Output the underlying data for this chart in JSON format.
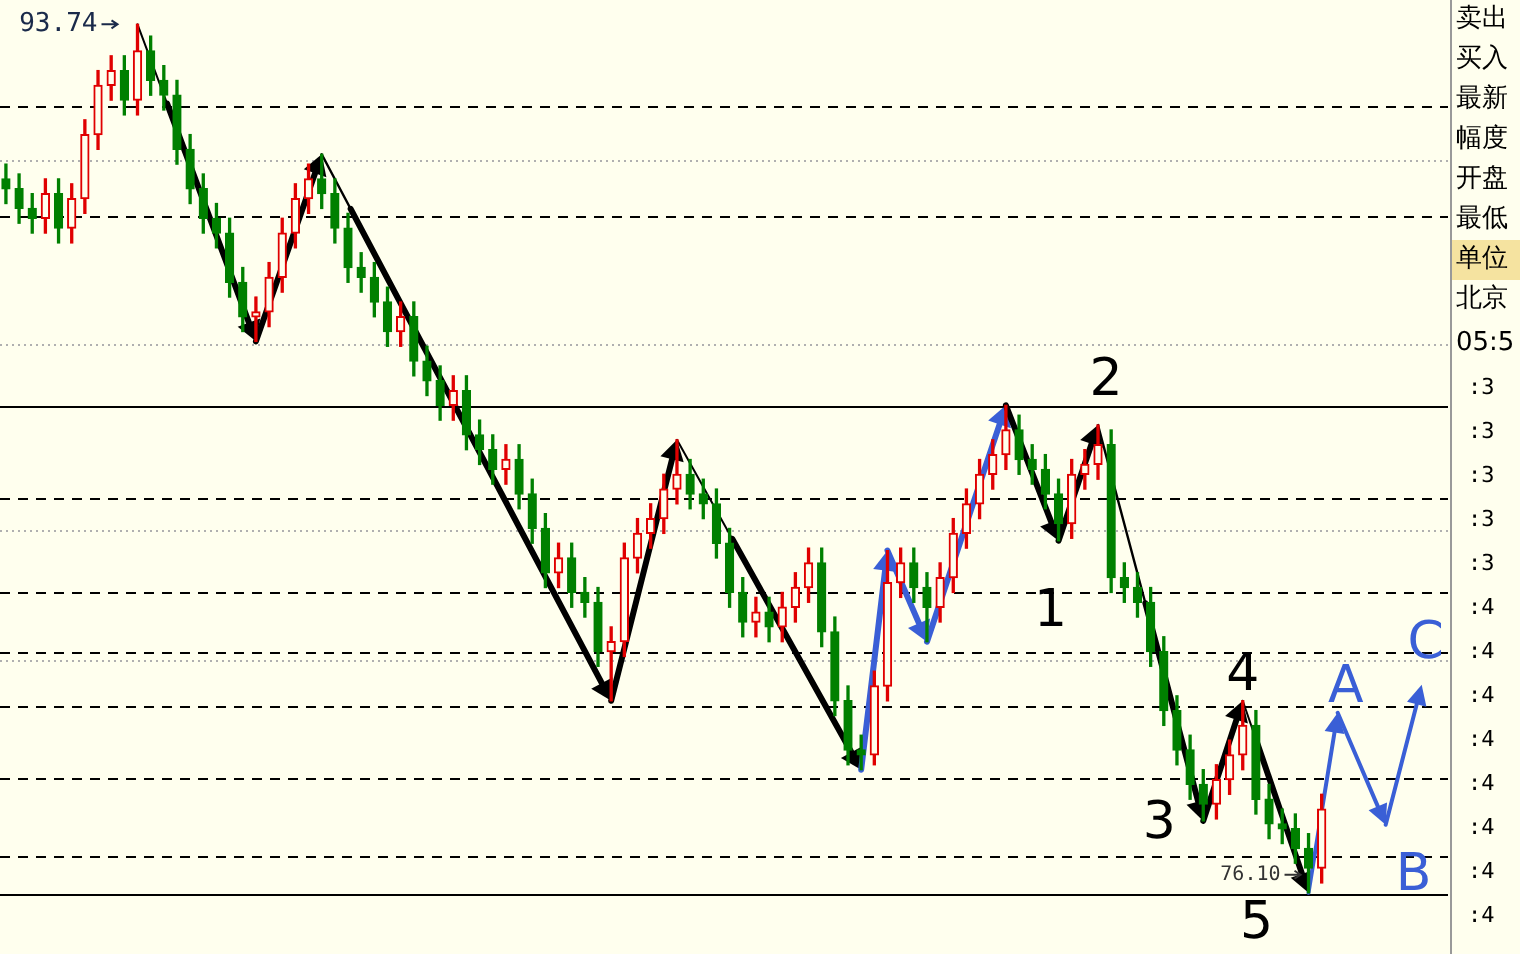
{
  "chart_data": {
    "type": "candlestick",
    "categories": [
      null,
      null,
      null,
      null,
      null,
      null,
      null,
      null,
      null,
      null,
      null,
      null,
      null,
      null,
      null,
      null,
      null,
      null,
      null,
      null,
      null,
      null,
      null,
      null,
      null,
      null,
      null,
      null,
      null,
      null,
      null,
      null,
      null,
      null,
      null,
      null,
      null,
      null,
      null,
      null,
      null,
      null,
      null,
      null,
      null,
      null,
      null,
      null,
      null,
      null,
      null,
      null,
      null,
      null,
      null,
      null,
      null,
      null,
      null,
      null,
      null,
      null,
      null,
      null,
      null,
      null,
      null,
      null,
      null,
      null,
      null,
      null,
      null,
      null,
      null,
      null,
      null,
      null,
      null,
      null,
      null,
      null,
      null,
      null,
      null,
      null,
      null,
      null,
      null,
      null,
      null,
      null,
      null,
      null,
      null,
      null,
      null,
      null,
      null,
      null,
      null
    ],
    "ohlc": [
      [
        90.6,
        90.9,
        90.1,
        90.4
      ],
      [
        90.4,
        90.7,
        89.7,
        90.0
      ],
      [
        90.0,
        90.3,
        89.5,
        89.8
      ],
      [
        89.8,
        90.6,
        89.5,
        90.3
      ],
      [
        90.3,
        90.6,
        89.3,
        89.6
      ],
      [
        89.6,
        90.5,
        89.3,
        90.2
      ],
      [
        90.2,
        91.8,
        89.9,
        91.5
      ],
      [
        91.5,
        92.8,
        91.2,
        92.5
      ],
      [
        92.5,
        93.1,
        92.2,
        92.8
      ],
      [
        92.8,
        93.1,
        91.9,
        92.2
      ],
      [
        92.2,
        93.74,
        91.9,
        93.2
      ],
      [
        93.2,
        93.5,
        92.3,
        92.6
      ],
      [
        92.6,
        92.9,
        92.0,
        92.3
      ],
      [
        92.3,
        92.6,
        90.9,
        91.2
      ],
      [
        91.2,
        91.5,
        90.1,
        90.4
      ],
      [
        90.4,
        90.7,
        89.5,
        89.8
      ],
      [
        89.8,
        90.1,
        89.2,
        89.5
      ],
      [
        89.5,
        89.8,
        88.2,
        88.5
      ],
      [
        88.5,
        88.8,
        87.5,
        87.8
      ],
      [
        87.8,
        88.2,
        87.3,
        87.9
      ],
      [
        87.9,
        88.9,
        87.6,
        88.6
      ],
      [
        88.6,
        89.8,
        88.3,
        89.5
      ],
      [
        89.5,
        90.5,
        89.2,
        90.2
      ],
      [
        90.2,
        90.9,
        89.9,
        90.6
      ],
      [
        90.6,
        91.1,
        90.0,
        90.3
      ],
      [
        90.3,
        90.6,
        89.3,
        89.6
      ],
      [
        89.6,
        89.9,
        88.5,
        88.8
      ],
      [
        88.8,
        89.1,
        88.3,
        88.6
      ],
      [
        88.6,
        88.9,
        87.8,
        88.1
      ],
      [
        88.1,
        88.4,
        87.2,
        87.5
      ],
      [
        87.5,
        88.1,
        87.2,
        87.8
      ],
      [
        87.8,
        88.1,
        86.6,
        86.9
      ],
      [
        86.9,
        87.2,
        86.2,
        86.5
      ],
      [
        86.5,
        86.8,
        85.7,
        86.0
      ],
      [
        86.0,
        86.6,
        85.7,
        86.3
      ],
      [
        86.3,
        86.6,
        85.1,
        85.4
      ],
      [
        85.4,
        85.7,
        84.8,
        85.1
      ],
      [
        85.1,
        85.4,
        84.4,
        84.7
      ],
      [
        84.7,
        85.2,
        84.4,
        84.9
      ],
      [
        84.9,
        85.2,
        83.9,
        84.2
      ],
      [
        84.2,
        84.5,
        83.2,
        83.5
      ],
      [
        83.5,
        83.8,
        82.3,
        82.6
      ],
      [
        82.6,
        83.2,
        82.3,
        82.9
      ],
      [
        82.9,
        83.2,
        81.9,
        82.2
      ],
      [
        82.2,
        82.5,
        81.7,
        82.0
      ],
      [
        82.0,
        82.3,
        80.7,
        81.0
      ],
      [
        81.0,
        81.5,
        80.0,
        81.2
      ],
      [
        81.2,
        83.2,
        80.9,
        82.9
      ],
      [
        82.9,
        83.7,
        82.6,
        83.4
      ],
      [
        83.4,
        84.0,
        83.1,
        83.7
      ],
      [
        83.7,
        84.6,
        83.4,
        84.3
      ],
      [
        84.3,
        85.3,
        84.0,
        84.6
      ],
      [
        84.6,
        84.9,
        83.9,
        84.2
      ],
      [
        84.2,
        84.5,
        83.7,
        84.0
      ],
      [
        84.0,
        84.3,
        82.9,
        83.2
      ],
      [
        83.2,
        83.5,
        81.9,
        82.2
      ],
      [
        82.2,
        82.5,
        81.3,
        81.6
      ],
      [
        81.6,
        82.1,
        81.3,
        81.8
      ],
      [
        81.8,
        82.1,
        81.2,
        81.5
      ],
      [
        81.5,
        82.2,
        81.2,
        81.9
      ],
      [
        81.9,
        82.6,
        81.6,
        82.3
      ],
      [
        82.3,
        83.1,
        82.0,
        82.8
      ],
      [
        82.8,
        83.1,
        81.1,
        81.4
      ],
      [
        81.4,
        81.7,
        79.7,
        80.0
      ],
      [
        80.0,
        80.3,
        78.7,
        79.0
      ],
      [
        79.0,
        79.3,
        78.6,
        78.9
      ],
      [
        78.9,
        80.6,
        78.7,
        80.3
      ],
      [
        80.3,
        83.05,
        80.0,
        82.4
      ],
      [
        82.4,
        83.1,
        82.1,
        82.8
      ],
      [
        82.8,
        83.1,
        82.0,
        82.3
      ],
      [
        82.3,
        82.6,
        81.2,
        81.9
      ],
      [
        81.9,
        82.8,
        81.6,
        82.5
      ],
      [
        82.5,
        83.7,
        82.2,
        83.4
      ],
      [
        83.4,
        84.3,
        83.1,
        84.0
      ],
      [
        84.0,
        84.9,
        83.7,
        84.6
      ],
      [
        84.6,
        85.3,
        84.3,
        85.0
      ],
      [
        85.0,
        86.0,
        84.7,
        85.5
      ],
      [
        85.5,
        85.8,
        84.6,
        84.9
      ],
      [
        84.9,
        85.2,
        84.4,
        84.7
      ],
      [
        84.7,
        85.0,
        83.9,
        84.2
      ],
      [
        84.2,
        84.5,
        83.25,
        83.6
      ],
      [
        83.6,
        84.9,
        83.3,
        84.6
      ],
      [
        84.6,
        85.1,
        84.3,
        84.8
      ],
      [
        84.8,
        85.6,
        84.5,
        85.2
      ],
      [
        85.2,
        85.5,
        82.2,
        82.5
      ],
      [
        82.5,
        82.8,
        82.0,
        82.3
      ],
      [
        82.3,
        82.6,
        81.7,
        82.0
      ],
      [
        82.0,
        82.3,
        80.7,
        81.0
      ],
      [
        81.0,
        81.3,
        79.5,
        79.8
      ],
      [
        79.8,
        80.1,
        78.7,
        79.0
      ],
      [
        79.0,
        79.3,
        78.0,
        78.3
      ],
      [
        78.3,
        78.6,
        77.56,
        77.9
      ],
      [
        77.9,
        78.7,
        77.6,
        78.4
      ],
      [
        78.4,
        79.2,
        78.1,
        78.9
      ],
      [
        78.9,
        80.0,
        78.6,
        79.5
      ],
      [
        79.5,
        79.8,
        77.7,
        78.0
      ],
      [
        78.0,
        78.3,
        77.2,
        77.5
      ],
      [
        77.5,
        77.8,
        77.1,
        77.4
      ],
      [
        77.4,
        77.7,
        76.7,
        77.0
      ],
      [
        77.0,
        77.3,
        76.1,
        76.6
      ],
      [
        76.6,
        78.1,
        76.3,
        77.8
      ]
    ],
    "colors": [
      "#008000",
      "#008000",
      "#008000",
      "#e00000",
      "#008000",
      "#e00000",
      "#e00000",
      "#e00000",
      "#e00000",
      "#008000",
      "#e00000",
      "#008000",
      "#008000",
      "#008000",
      "#008000",
      "#008000",
      "#008000",
      "#008000",
      "#008000",
      "#e00000",
      "#e00000",
      "#e00000",
      "#e00000",
      "#e00000",
      "#008000",
      "#008000",
      "#008000",
      "#008000",
      "#008000",
      "#008000",
      "#e00000",
      "#008000",
      "#008000",
      "#008000",
      "#e00000",
      "#008000",
      "#008000",
      "#008000",
      "#e00000",
      "#008000",
      "#008000",
      "#008000",
      "#e00000",
      "#008000",
      "#008000",
      "#008000",
      "#e00000",
      "#e00000",
      "#e00000",
      "#e00000",
      "#e00000",
      "#e00000",
      "#008000",
      "#008000",
      "#008000",
      "#008000",
      "#008000",
      "#e00000",
      "#008000",
      "#e00000",
      "#e00000",
      "#e00000",
      "#008000",
      "#008000",
      "#008000",
      "#008000",
      "#e00000",
      "#e00000",
      "#e00000",
      "#008000",
      "#008000",
      "#e00000",
      "#e00000",
      "#e00000",
      "#e00000",
      "#e00000",
      "#e00000",
      "#008000",
      "#008000",
      "#008000",
      "#008000",
      "#e00000",
      "#e00000",
      "#e00000",
      "#008000",
      "#008000",
      "#008000",
      "#008000",
      "#008000",
      "#008000",
      "#008000",
      "#008000",
      "#e00000",
      "#e00000",
      "#e00000",
      "#008000",
      "#008000",
      "#008000",
      "#008000",
      "#008000",
      "#e00000"
    ],
    "tick_labels": false,
    "ref_lines": [
      {
        "axis": "y",
        "value": 92.1,
        "color": "#000000",
        "line_style": "dashed"
      },
      {
        "axis": "y",
        "value": 90.98,
        "color": "#b0b0b0",
        "line_style": "dotted"
      },
      {
        "axis": "y",
        "value": 89.84,
        "color": "#000000",
        "line_style": "dashed"
      },
      {
        "axis": "y",
        "value": 87.24,
        "color": "#b0b0b0",
        "line_style": "dotted"
      },
      {
        "axis": "y",
        "value": 85.98,
        "color": "#000000",
        "line_style": "solid"
      },
      {
        "axis": "y",
        "value": 84.11,
        "color": "#000000",
        "line_style": "dashed"
      },
      {
        "axis": "y",
        "value": 83.46,
        "color": "#b0b0b0",
        "line_style": "dotted"
      },
      {
        "axis": "y",
        "value": 82.2,
        "color": "#000000",
        "line_style": "dashed"
      },
      {
        "axis": "y",
        "value": 81.0,
        "color": "#000000",
        "line_style": "dashed"
      },
      {
        "axis": "y",
        "value": 80.81,
        "color": "#b0b0b0",
        "line_style": "dotted"
      },
      {
        "axis": "y",
        "value": 79.88,
        "color": "#000000",
        "line_style": "dashed"
      },
      {
        "axis": "y",
        "value": 78.42,
        "color": "#000000",
        "line_style": "dashed"
      },
      {
        "axis": "y",
        "value": 76.83,
        "color": "#000000",
        "line_style": "dashed"
      },
      {
        "axis": "y",
        "value": 76.06,
        "color": "#000000",
        "line_style": "solid"
      }
    ],
    "annotations": [
      "93.74",
      "76.10",
      "1",
      "2",
      "3",
      "4",
      "5",
      "A",
      "B",
      "C",
      "卖出",
      "买入",
      "最新",
      "幅度",
      "开盘",
      "最低",
      "单位",
      "北京",
      "05:5",
      ":3",
      ":3",
      ":3",
      ":3",
      ":3",
      ":4",
      ":4",
      ":4",
      ":4",
      ":4",
      ":4",
      ":4",
      ":4"
    ]
  }
}
